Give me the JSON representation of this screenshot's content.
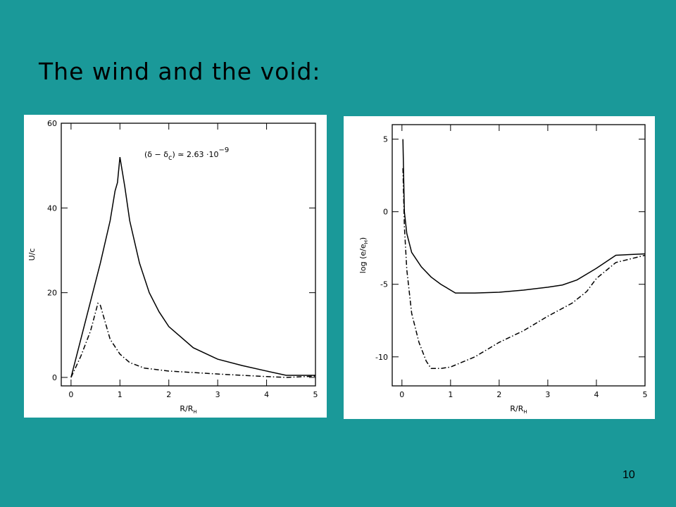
{
  "slide": {
    "title": "The wind and the void:",
    "page_number": "10"
  },
  "chart_data": [
    {
      "type": "line",
      "xlabel": "R/R",
      "xlabel_sub": "H",
      "ylabel": "U/c",
      "annotation": {
        "text": "(δ − δ",
        "sub": "c",
        "rest": ") ≃ 2.63 ·10",
        "sup": "−9"
      },
      "xlim": [
        -0.2,
        5
      ],
      "ylim": [
        -2,
        60
      ],
      "xticks": [
        0,
        1,
        2,
        3,
        4,
        5
      ],
      "yticks": [
        0,
        20,
        40,
        60
      ],
      "series": [
        {
          "color": "#000000",
          "style": "solid",
          "x": [
            0,
            0.2,
            0.4,
            0.6,
            0.8,
            0.9,
            0.95,
            1,
            1.1,
            1.2,
            1.4,
            1.6,
            1.8,
            2,
            2.5,
            3,
            3.5,
            4,
            4.4,
            5
          ],
          "values": [
            0,
            9,
            18,
            27,
            37,
            44,
            46,
            52,
            45,
            37,
            27,
            20,
            15.5,
            12,
            7,
            4.3,
            2.8,
            1.5,
            0.5,
            0.5
          ]
        },
        {
          "color": "#000000",
          "style": "dashdot",
          "x": [
            0,
            0.2,
            0.4,
            0.55,
            0.6,
            0.7,
            0.8,
            1,
            1.2,
            1.5,
            2,
            3,
            4,
            4.4,
            5
          ],
          "values": [
            0,
            5,
            11,
            17.5,
            17,
            13,
            9,
            5.5,
            3.5,
            2.2,
            1.5,
            0.8,
            0.2,
            0,
            0.3
          ]
        }
      ]
    },
    {
      "type": "line",
      "xlabel": "R/R",
      "xlabel_sub": "H",
      "ylabel": "log (e/e",
      "ylabel_sub": "H",
      "ylabel_end": ")",
      "xlim": [
        -0.2,
        5
      ],
      "ylim": [
        -12,
        6
      ],
      "xticks": [
        0,
        1,
        2,
        3,
        4,
        5
      ],
      "yticks": [
        -10,
        -5,
        0,
        5
      ],
      "series": [
        {
          "color": "#000000",
          "style": "solid",
          "x": [
            0.02,
            0.05,
            0.1,
            0.2,
            0.4,
            0.6,
            0.8,
            1,
            1.1,
            1.5,
            2,
            2.5,
            3,
            3.3,
            3.6,
            4,
            4.4,
            5
          ],
          "values": [
            5,
            0,
            -1.5,
            -2.8,
            -3.8,
            -4.5,
            -5,
            -5.4,
            -5.6,
            -5.6,
            -5.55,
            -5.4,
            -5.2,
            -5.05,
            -4.7,
            -3.9,
            -3,
            -2.9
          ]
        },
        {
          "color": "#000000",
          "style": "dashdot",
          "x": [
            0.02,
            0.05,
            0.1,
            0.2,
            0.35,
            0.5,
            0.6,
            0.8,
            1,
            1.5,
            2,
            2.5,
            3,
            3.5,
            3.8,
            4,
            4.4,
            5
          ],
          "values": [
            3,
            -1,
            -4,
            -7,
            -9,
            -10.3,
            -10.8,
            -10.8,
            -10.7,
            -10,
            -9,
            -8.2,
            -7.2,
            -6.3,
            -5.5,
            -4.6,
            -3.5,
            -3
          ]
        }
      ]
    }
  ]
}
